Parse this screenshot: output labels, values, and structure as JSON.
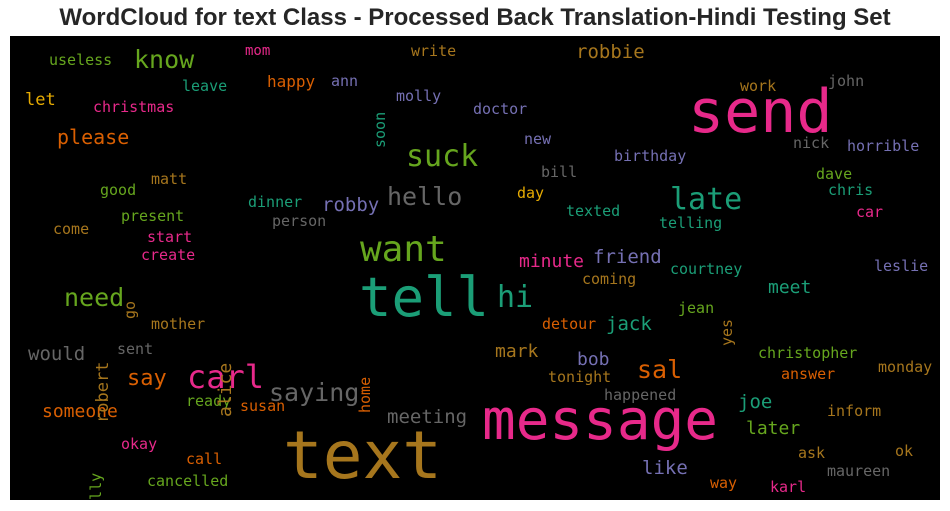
{
  "title": "WordCloud for text Class - Processed Back Translation-Hindi Testing Set",
  "words": [
    {
      "text": "send",
      "color": "#e7298a"
    },
    {
      "text": "message",
      "color": "#e7298a"
    },
    {
      "text": "text",
      "color": "#a6761d"
    },
    {
      "text": "tell",
      "color": "#1b9e77"
    },
    {
      "text": "want",
      "color": "#66a61e"
    },
    {
      "text": "late",
      "color": "#1b9e77"
    },
    {
      "text": "suck",
      "color": "#66a61e"
    },
    {
      "text": "hello",
      "color": "#666666"
    },
    {
      "text": "hi",
      "color": "#1b9e77"
    },
    {
      "text": "carl",
      "color": "#e7298a"
    },
    {
      "text": "saying",
      "color": "#666666"
    },
    {
      "text": "know",
      "color": "#66a61e"
    },
    {
      "text": "need",
      "color": "#66a61e"
    },
    {
      "text": "say",
      "color": "#d95f02"
    },
    {
      "text": "sal",
      "color": "#d95f02"
    },
    {
      "text": "please",
      "color": "#d95f02"
    },
    {
      "text": "robbie",
      "color": "#a6761d"
    },
    {
      "text": "robby",
      "color": "#7570b3"
    },
    {
      "text": "friend",
      "color": "#7570b3"
    },
    {
      "text": "minute",
      "color": "#e7298a"
    },
    {
      "text": "meeting",
      "color": "#666666"
    },
    {
      "text": "someone",
      "color": "#d95f02"
    },
    {
      "text": "would",
      "color": "#666666"
    },
    {
      "text": "mark",
      "color": "#a6761d"
    },
    {
      "text": "jack",
      "color": "#1b9e77"
    },
    {
      "text": "joe",
      "color": "#1b9e77"
    },
    {
      "text": "meet",
      "color": "#1b9e77"
    },
    {
      "text": "later",
      "color": "#66a61e"
    },
    {
      "text": "like",
      "color": "#7570b3"
    },
    {
      "text": "bob",
      "color": "#7570b3"
    },
    {
      "text": "let",
      "color": "#e6ab02"
    },
    {
      "text": "useless",
      "color": "#66a61e"
    },
    {
      "text": "leave",
      "color": "#1b9e77"
    },
    {
      "text": "mom",
      "color": "#e7298a"
    },
    {
      "text": "happy",
      "color": "#d95f02"
    },
    {
      "text": "ann",
      "color": "#7570b3"
    },
    {
      "text": "write",
      "color": "#a6761d"
    },
    {
      "text": "molly",
      "color": "#7570b3"
    },
    {
      "text": "christmas",
      "color": "#e7298a"
    },
    {
      "text": "doctor",
      "color": "#7570b3"
    },
    {
      "text": "work",
      "color": "#a6761d"
    },
    {
      "text": "john",
      "color": "#666666"
    },
    {
      "text": "new",
      "color": "#7570b3"
    },
    {
      "text": "birthday",
      "color": "#7570b3"
    },
    {
      "text": "nick",
      "color": "#666666"
    },
    {
      "text": "horrible",
      "color": "#7570b3"
    },
    {
      "text": "bill",
      "color": "#666666"
    },
    {
      "text": "dave",
      "color": "#66a61e"
    },
    {
      "text": "chris",
      "color": "#1b9e77"
    },
    {
      "text": "matt",
      "color": "#a6761d"
    },
    {
      "text": "good",
      "color": "#66a61e"
    },
    {
      "text": "day",
      "color": "#e6ab02"
    },
    {
      "text": "dinner",
      "color": "#1b9e77"
    },
    {
      "text": "texted",
      "color": "#1b9e77"
    },
    {
      "text": "car",
      "color": "#e7298a"
    },
    {
      "text": "present",
      "color": "#66a61e"
    },
    {
      "text": "person",
      "color": "#666666"
    },
    {
      "text": "telling",
      "color": "#1b9e77"
    },
    {
      "text": "come",
      "color": "#a6761d"
    },
    {
      "text": "start",
      "color": "#e7298a"
    },
    {
      "text": "create",
      "color": "#e7298a"
    },
    {
      "text": "courtney",
      "color": "#1b9e77"
    },
    {
      "text": "leslie",
      "color": "#7570b3"
    },
    {
      "text": "coming",
      "color": "#a6761d"
    },
    {
      "text": "jean",
      "color": "#66a61e"
    },
    {
      "text": "mother",
      "color": "#a6761d"
    },
    {
      "text": "detour",
      "color": "#d95f02"
    },
    {
      "text": "sent",
      "color": "#666666"
    },
    {
      "text": "christopher",
      "color": "#66a61e"
    },
    {
      "text": "monday",
      "color": "#a6761d"
    },
    {
      "text": "tonight",
      "color": "#a6761d"
    },
    {
      "text": "answer",
      "color": "#d95f02"
    },
    {
      "text": "ready",
      "color": "#66a61e"
    },
    {
      "text": "susan",
      "color": "#d95f02"
    },
    {
      "text": "happened",
      "color": "#666666"
    },
    {
      "text": "inform",
      "color": "#a6761d"
    },
    {
      "text": "okay",
      "color": "#e7298a"
    },
    {
      "text": "ask",
      "color": "#a6761d"
    },
    {
      "text": "ok",
      "color": "#a6761d"
    },
    {
      "text": "call",
      "color": "#d95f02"
    },
    {
      "text": "maureen",
      "color": "#666666"
    },
    {
      "text": "cancelled",
      "color": "#66a61e"
    },
    {
      "text": "way",
      "color": "#d95f02"
    },
    {
      "text": "karl",
      "color": "#e7298a"
    },
    {
      "text": "soon",
      "color": "#1b9e77"
    },
    {
      "text": "go",
      "color": "#a6761d"
    },
    {
      "text": "robert",
      "color": "#a6761d"
    },
    {
      "text": "alice",
      "color": "#a6761d"
    },
    {
      "text": "home",
      "color": "#d95f02"
    },
    {
      "text": "yes",
      "color": "#a6761d"
    },
    {
      "text": "billy",
      "color": "#66a61e"
    }
  ]
}
